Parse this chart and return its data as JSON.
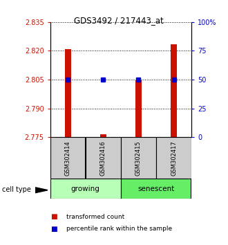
{
  "title": "GDS3492 / 217443_at",
  "samples": [
    "GSM302414",
    "GSM302416",
    "GSM302415",
    "GSM302417"
  ],
  "red_values": [
    2.821,
    2.7765,
    2.8048,
    2.8235
  ],
  "blue_values": [
    50,
    50,
    50,
    50
  ],
  "ylim_left": [
    2.775,
    2.835
  ],
  "ylim_right": [
    0,
    100
  ],
  "yticks_left": [
    2.775,
    2.79,
    2.805,
    2.82,
    2.835
  ],
  "yticks_right": [
    0,
    25,
    50,
    75,
    100
  ],
  "ytick_labels_right": [
    "0",
    "25",
    "50",
    "75",
    "100%"
  ],
  "bar_color": "#cc1100",
  "dot_color": "#0000cc",
  "bar_width": 0.18,
  "label_box_color": "#cccccc",
  "growing_color": "#b8ffb8",
  "senescent_color": "#66ee66",
  "legend_red": "transformed count",
  "legend_blue": "percentile rank within the sample",
  "cell_type_label": "cell type"
}
